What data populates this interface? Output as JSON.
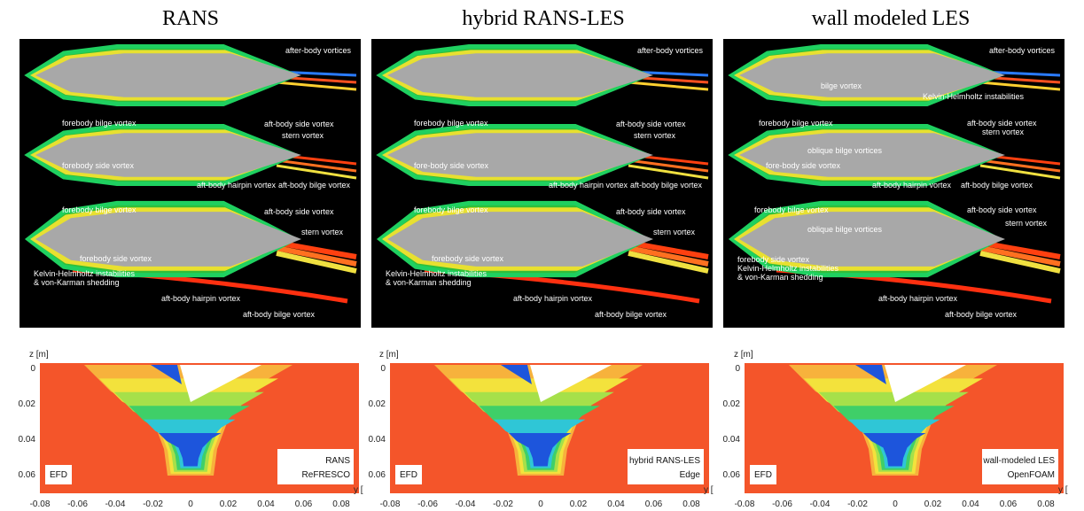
{
  "columns": [
    {
      "title": "RANS",
      "annotations": [
        "after-body vortices",
        "forebody bilge vortex",
        "aft-body side vortex",
        "stern vortex",
        "forebody side vortex",
        "aft-body hairpin vortex",
        "aft-body bilge vortex",
        "forebody bilge vortex",
        "aft-body side vortex",
        "stern vortex",
        "forebody side vortex",
        "Kelvin-Helmholtz instabilities",
        "& von-Karman shedding",
        "aft-body hairpin vortex",
        "aft-body bilge vortex"
      ],
      "contour_labels": {
        "left": "EFD",
        "right": [
          "RANS",
          "ReFRESCO"
        ]
      }
    },
    {
      "title": "hybrid RANS-LES",
      "annotations": [
        "after-body vortices",
        "forebody bilge vortex",
        "aft-body side vortex",
        "stern vortex",
        "fore-body side vortex",
        "aft-body hairpin vortex",
        "aft-body bilge vortex",
        "forebody bilge vortex",
        "aft-body side vortex",
        "stern vortex",
        "forebody side vortex",
        "Kelvin-Helmholtz instabilities",
        "& von-Karman shedding",
        "aft-body hairpin vortex",
        "aft-body bilge vortex"
      ],
      "contour_labels": {
        "left": "EFD",
        "right": [
          "hybrid RANS-LES",
          "Edge"
        ]
      }
    },
    {
      "title": "wall modeled LES",
      "annotations": [
        "after-body vortices",
        "bilge vortex",
        "Kelvin-Helmholtz instabilities",
        "forebody bilge vortex",
        "aft-body side vortex",
        "stern vortex",
        "oblique bilge vortices",
        "fore-body side vortex",
        "aft-body hairpin vortex",
        "aft-body bilge vortex",
        "forebody bilge vortex",
        "aft-body side vortex",
        "stern vortex",
        "oblique bilge vortices",
        "forebody side vortex",
        "Kelvin-Helmholtz instabilities",
        "& von-Karman shedding",
        "aft-body hairpin vortex",
        "aft-body bilge vortex"
      ],
      "contour_labels": {
        "left": "EFD",
        "right": [
          "wall-modeled LES",
          "OpenFOAM"
        ]
      }
    }
  ],
  "contour_axes": {
    "z_label": "z [m]",
    "y_label": "y [",
    "z_ticks": [
      "0",
      "0.02",
      "0.04",
      "0.06"
    ],
    "y_ticks": [
      "-0.08",
      "-0.06",
      "-0.04",
      "-0.02",
      "0",
      "0.02",
      "0.04",
      "0.06",
      "0.08"
    ]
  }
}
